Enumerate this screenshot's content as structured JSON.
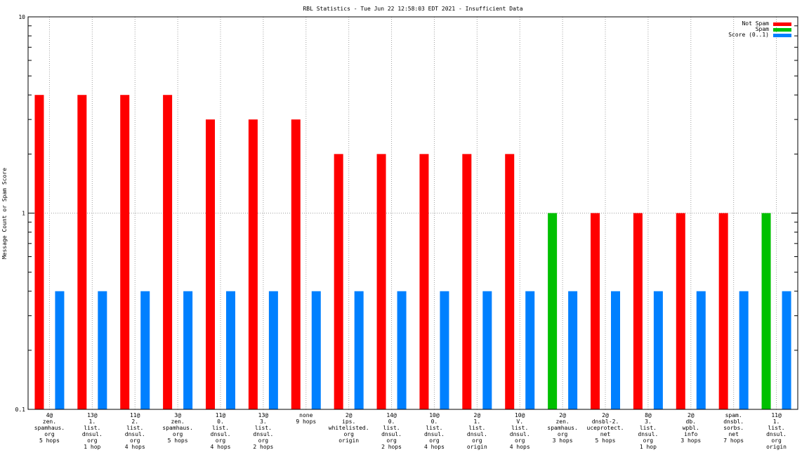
{
  "chart_data": {
    "type": "bar",
    "title": "RBL Statistics - Tue Jun 22 12:58:03 EDT 2021 - Insufficient Data",
    "xlabel": "",
    "ylabel": "Message Count or Spam Score",
    "yscale": "log",
    "ylim": [
      0.1,
      10
    ],
    "yticks": [
      {
        "value": 0.1,
        "label": "0.1"
      },
      {
        "value": 1,
        "label": "1"
      },
      {
        "value": 10,
        "label": "10"
      }
    ],
    "grid": true,
    "legend_position": "top-right",
    "categories": [
      [
        "4@",
        "zen.",
        "spamhaus.",
        "org",
        "5 hops"
      ],
      [
        "13@",
        "1.",
        "list.",
        "dnsul.",
        "org",
        "1 hop"
      ],
      [
        "11@",
        "2.",
        "list.",
        "dnsul.",
        "org",
        "4 hops"
      ],
      [
        "3@",
        "zen.",
        "spamhaus.",
        "org",
        "5 hops"
      ],
      [
        "11@",
        "0.",
        "list.",
        "dnsul.",
        "org",
        "4 hops"
      ],
      [
        "13@",
        "3.",
        "list.",
        "dnsul.",
        "org",
        "2 hops"
      ],
      [
        "none",
        "9 hops"
      ],
      [
        "2@",
        "ips.",
        "whitelisted.",
        "org",
        "origin"
      ],
      [
        "14@",
        "0.",
        "list.",
        "dnsul.",
        "org",
        "2 hops"
      ],
      [
        "10@",
        "0.",
        "list.",
        "dnsul.",
        "org",
        "4 hops"
      ],
      [
        "2@",
        "1.",
        "list.",
        "dnsul.",
        "org",
        "origin"
      ],
      [
        "10@",
        "V.",
        "list.",
        "dnsul.",
        "org",
        "4 hops"
      ],
      [
        "2@",
        "zen.",
        "spamhaus.",
        "org",
        "3 hops"
      ],
      [
        "2@",
        "dnsbl-2.",
        "uceprotect.",
        "net",
        "5 hops"
      ],
      [
        "8@",
        "3.",
        "list.",
        "dnsul.",
        "org",
        "1 hop"
      ],
      [
        "2@",
        "db.",
        "wpbl.",
        "info",
        "3 hops"
      ],
      [
        "spam.",
        "dnsbl.",
        "sorbs.",
        "net",
        "7 hops"
      ],
      [
        "11@",
        "1.",
        "list.",
        "dnsul.",
        "org",
        "origin"
      ]
    ],
    "series": [
      {
        "name": "Not Spam",
        "color": "#ff0000",
        "values": [
          4,
          4,
          4,
          4,
          3,
          3,
          3,
          2,
          2,
          2,
          2,
          2,
          null,
          1,
          1,
          1,
          1,
          null
        ]
      },
      {
        "name": "Spam",
        "color": "#00c000",
        "values": [
          null,
          null,
          null,
          null,
          null,
          null,
          null,
          null,
          null,
          null,
          null,
          null,
          1,
          null,
          null,
          null,
          null,
          1
        ]
      },
      {
        "name": "Score (0..1)",
        "color": "#0080ff",
        "values": [
          0.4,
          0.4,
          0.4,
          0.4,
          0.4,
          0.4,
          0.4,
          0.4,
          0.4,
          0.4,
          0.4,
          0.4,
          0.4,
          0.4,
          0.4,
          0.4,
          0.4,
          0.4
        ]
      }
    ]
  }
}
